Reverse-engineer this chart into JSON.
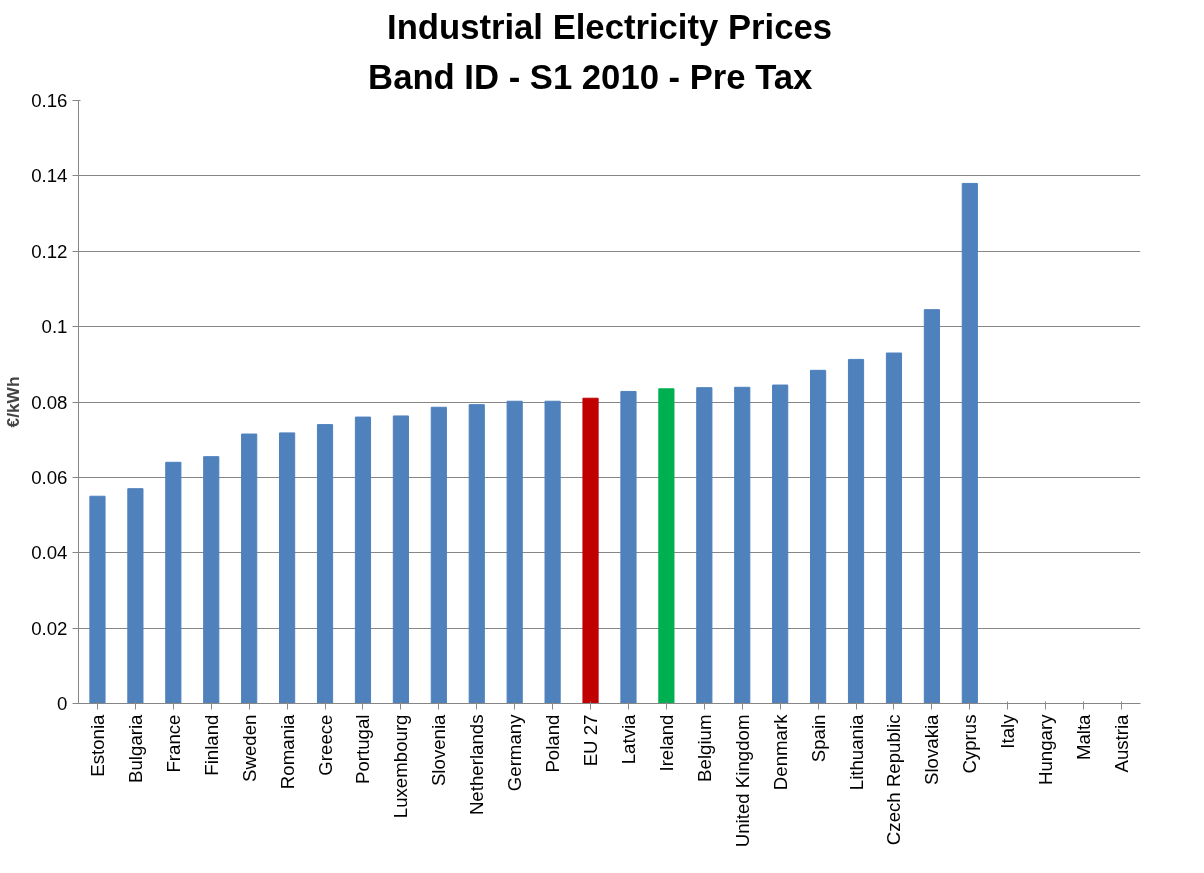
{
  "chart_data": {
    "type": "bar",
    "title": "Industrial Electricity Prices",
    "subtitle": "Band ID  -  S1 2010  -  Pre Tax",
    "ylabel": "€/kWh",
    "categories": [
      "Estonia",
      "Bulgaria",
      "France",
      "Finland",
      "Sweden",
      "Romania",
      "Greece",
      "Portugal",
      "Luxembourg",
      "Slovenia",
      "Netherlands",
      "Germany",
      "Poland",
      "EU 27",
      "Latvia",
      "Ireland",
      "Belgium",
      "United Kingdom",
      "Denmark",
      "Spain",
      "Lithuania",
      "Czech Republic",
      "Slovakia",
      "Cyprus",
      "Italy",
      "Hungary",
      "Malta",
      "Austria"
    ],
    "values": [
      0.055,
      0.057,
      0.064,
      0.0655,
      0.0715,
      0.0718,
      0.074,
      0.076,
      0.0763,
      0.0786,
      0.0793,
      0.0802,
      0.0802,
      0.081,
      0.0828,
      0.0835,
      0.0838,
      0.0839,
      0.0845,
      0.0884,
      0.0913,
      0.093,
      0.1045,
      0.138,
      null,
      null,
      null,
      null
    ],
    "colors": [
      "#4f81bd",
      "#4f81bd",
      "#4f81bd",
      "#4f81bd",
      "#4f81bd",
      "#4f81bd",
      "#4f81bd",
      "#4f81bd",
      "#4f81bd",
      "#4f81bd",
      "#4f81bd",
      "#4f81bd",
      "#4f81bd",
      "#c00000",
      "#4f81bd",
      "#00b050",
      "#4f81bd",
      "#4f81bd",
      "#4f81bd",
      "#4f81bd",
      "#4f81bd",
      "#4f81bd",
      "#4f81bd",
      "#4f81bd",
      "#4f81bd",
      "#4f81bd",
      "#4f81bd",
      "#4f81bd"
    ],
    "ylim": [
      0,
      0.16
    ],
    "yticks": [
      0,
      0.02,
      0.04,
      0.06,
      0.08,
      {
        "value": 0.1,
        "label": "0.1"
      },
      0.12,
      0.14,
      0.16
    ],
    "grid": "y"
  }
}
